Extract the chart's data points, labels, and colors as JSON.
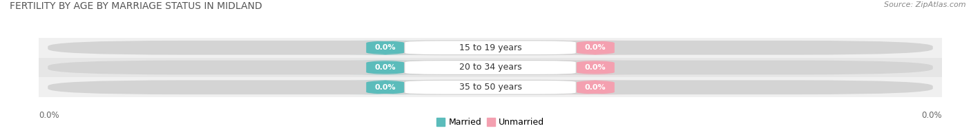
{
  "title": "FERTILITY BY AGE BY MARRIAGE STATUS IN MIDLAND",
  "source": "Source: ZipAtlas.com",
  "categories": [
    "15 to 19 years",
    "20 to 34 years",
    "35 to 50 years"
  ],
  "married_values": [
    0.0,
    0.0,
    0.0
  ],
  "unmarried_values": [
    0.0,
    0.0,
    0.0
  ],
  "married_color": "#5bbcbb",
  "unmarried_color": "#f4a0b0",
  "row_bg_odd": "#f0f0f0",
  "row_bg_even": "#e6e6e6",
  "bar_bg_color": "#d4d4d4",
  "title_fontsize": 10,
  "source_fontsize": 8,
  "label_fontsize": 9,
  "value_fontsize": 8,
  "axis_val_fontsize": 8.5,
  "legend_fontsize": 9
}
